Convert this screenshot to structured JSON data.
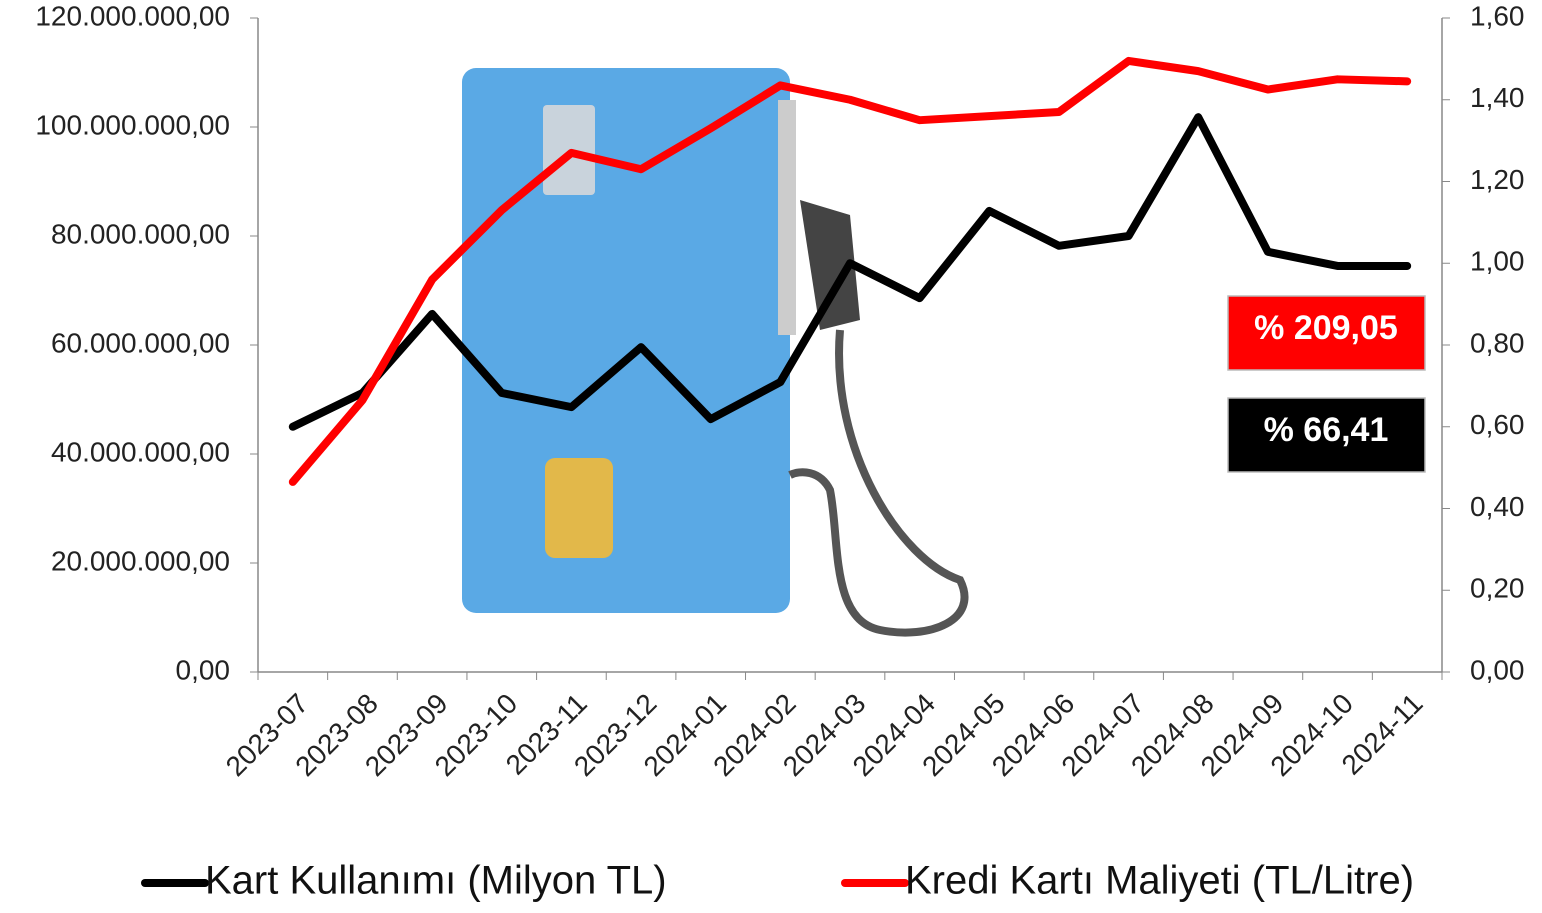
{
  "chart_data": {
    "type": "line",
    "categories": [
      "2023-07",
      "2023-08",
      "2023-09",
      "2023-10",
      "2023-11",
      "2023-12",
      "2024-01",
      "2024-02",
      "2024-03",
      "2024-04",
      "2024-05",
      "2024-06",
      "2024-07",
      "2024-08",
      "2024-09",
      "2024-10",
      "2024-11"
    ],
    "series": [
      {
        "name": "Kart Kullanımı (Milyon TL)",
        "color": "#000000",
        "axis": "y",
        "values": [
          45000000,
          51200000,
          65700000,
          51200000,
          48600000,
          59600000,
          46400000,
          53200000,
          75000000,
          68600000,
          84600000,
          78200000,
          80000000,
          101800000,
          77100000,
          74500000,
          74500000
        ]
      },
      {
        "name": "Kredi Kartı Maliyeti (TL/Litre)",
        "color": "#ff0000",
        "axis": "y2",
        "values": [
          0.465,
          0.665,
          0.96,
          1.13,
          1.27,
          1.23,
          1.33,
          1.435,
          1.4,
          1.35,
          1.36,
          1.37,
          1.495,
          1.47,
          1.425,
          1.45,
          1.445
        ]
      }
    ],
    "ylim": [
      0,
      120000000
    ],
    "yticks": [
      {
        "value": 0,
        "label": "0,00"
      },
      {
        "value": 20000000,
        "label": "20.000.000,00"
      },
      {
        "value": 40000000,
        "label": "40.000.000,00"
      },
      {
        "value": 60000000,
        "label": "60.000.000,00"
      },
      {
        "value": 80000000,
        "label": "80.000.000,00"
      },
      {
        "value": 100000000,
        "label": "100.000.000,00"
      },
      {
        "value": 120000000,
        "label": "120.000.000,00"
      }
    ],
    "y2lim": [
      0,
      1.6
    ],
    "y2ticks": [
      {
        "value": 0,
        "label": "0,00"
      },
      {
        "value": 0.2,
        "label": "0,20"
      },
      {
        "value": 0.4,
        "label": "0,40"
      },
      {
        "value": 0.6,
        "label": "0,60"
      },
      {
        "value": 0.8,
        "label": "0,80"
      },
      {
        "value": 1,
        "label": "1,00"
      },
      {
        "value": 1.2,
        "label": "1,20"
      },
      {
        "value": 1.4,
        "label": "1,40"
      },
      {
        "value": 1.6,
        "label": "1,60"
      }
    ],
    "annotations": [
      {
        "text": "% 209,05",
        "color": "#ff0000"
      },
      {
        "text": "% 66,41",
        "color": "#000000"
      }
    ],
    "legend": "bottom"
  }
}
